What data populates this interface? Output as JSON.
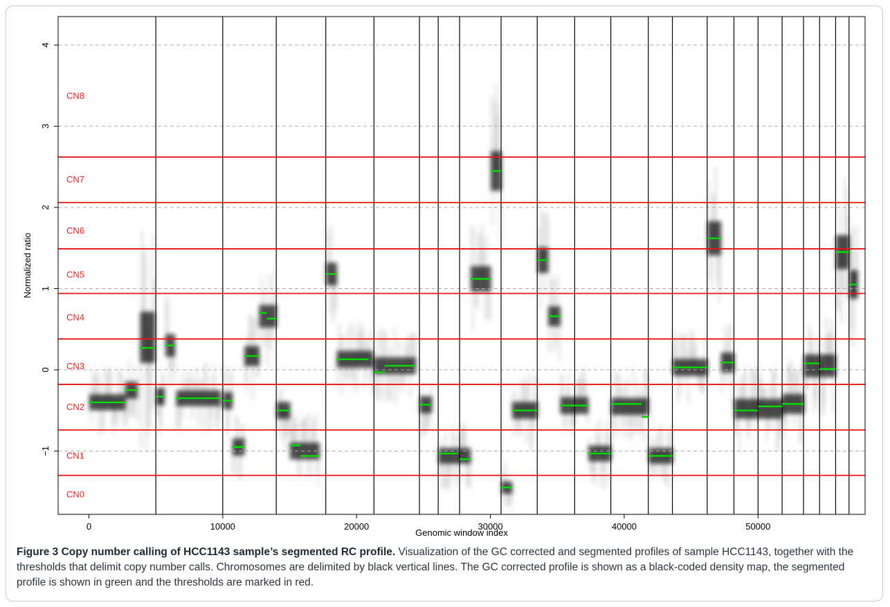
{
  "chart_data": {
    "type": "scatter",
    "title": "",
    "xlabel": "Genomic window index",
    "ylabel": "Normalized ratio",
    "xlim": [
      -2300,
      58000
    ],
    "ylim": [
      -1.78,
      4.35
    ],
    "x_ticks": [
      0,
      10000,
      20000,
      30000,
      40000,
      50000
    ],
    "x_tick_labels": [
      "0",
      "10000",
      "20000",
      "30000",
      "40000",
      "50000"
    ],
    "y_ticks": [
      -1,
      0,
      1,
      2,
      3,
      4
    ],
    "y_tick_labels": [
      "−1",
      "0",
      "1",
      "2",
      "3",
      "4"
    ],
    "dashed_gridlines_y": [
      -1,
      0,
      1,
      2,
      3,
      4
    ],
    "chromosome_boundaries": [
      5000,
      10000,
      14000,
      17700,
      21300,
      24700,
      26100,
      27700,
      30800,
      33500,
      36300,
      39000,
      41800,
      43600,
      46200,
      48200,
      50000,
      51800,
      53400,
      54600,
      55800,
      56800
    ],
    "thresholds": [
      {
        "label": "CN0",
        "label_y": -1.53,
        "upper": -1.3
      },
      {
        "label": "CN1",
        "label_y": -1.05,
        "upper": -0.74
      },
      {
        "label": "CN2",
        "label_y": -0.45,
        "upper": -0.18
      },
      {
        "label": "CN3",
        "label_y": 0.05,
        "upper": 0.38
      },
      {
        "label": "CN4",
        "label_y": 0.65,
        "upper": 0.94
      },
      {
        "label": "CN5",
        "label_y": 1.18,
        "upper": 1.49
      },
      {
        "label": "CN6",
        "label_y": 1.72,
        "upper": 2.06
      },
      {
        "label": "CN7",
        "label_y": 2.35,
        "upper": 2.62
      },
      {
        "label": "CN8",
        "label_y": 3.38,
        "upper": null
      }
    ],
    "segments": [
      {
        "x0": 0,
        "x1": 2700,
        "y": -0.4
      },
      {
        "x0": 2700,
        "x1": 3600,
        "y": -0.25
      },
      {
        "x0": 3800,
        "x1": 4900,
        "y": 0.27
      },
      {
        "x0": 5000,
        "x1": 5600,
        "y": -0.33
      },
      {
        "x0": 5700,
        "x1": 6400,
        "y": 0.3
      },
      {
        "x0": 6500,
        "x1": 7600,
        "y": -0.35
      },
      {
        "x0": 7600,
        "x1": 9800,
        "y": -0.35
      },
      {
        "x0": 10000,
        "x1": 10700,
        "y": -0.38
      },
      {
        "x0": 10700,
        "x1": 11600,
        "y": -0.95
      },
      {
        "x0": 11600,
        "x1": 12700,
        "y": 0.17
      },
      {
        "x0": 12700,
        "x1": 13300,
        "y": 0.7
      },
      {
        "x0": 13300,
        "x1": 14000,
        "y": 0.63
      },
      {
        "x0": 14000,
        "x1": 15000,
        "y": -0.5
      },
      {
        "x0": 15000,
        "x1": 15800,
        "y": -0.93
      },
      {
        "x0": 15800,
        "x1": 17200,
        "y": -1.06
      },
      {
        "x0": 17700,
        "x1": 18500,
        "y": 1.18
      },
      {
        "x0": 18500,
        "x1": 20900,
        "y": 0.13
      },
      {
        "x0": 21300,
        "x1": 22100,
        "y": -0.03
      },
      {
        "x0": 22100,
        "x1": 24400,
        "y": 0.05
      },
      {
        "x0": 24700,
        "x1": 25600,
        "y": -0.43
      },
      {
        "x0": 26100,
        "x1": 27600,
        "y": -1.03
      },
      {
        "x0": 27700,
        "x1": 28500,
        "y": -1.1
      },
      {
        "x0": 28500,
        "x1": 30000,
        "y": 1.12
      },
      {
        "x0": 30000,
        "x1": 30800,
        "y": 2.45
      },
      {
        "x0": 30800,
        "x1": 31600,
        "y": -1.45
      },
      {
        "x0": 31600,
        "x1": 33500,
        "y": -0.5
      },
      {
        "x0": 33500,
        "x1": 34300,
        "y": 1.35
      },
      {
        "x0": 34300,
        "x1": 35200,
        "y": 0.66
      },
      {
        "x0": 35200,
        "x1": 36300,
        "y": -0.44
      },
      {
        "x0": 36300,
        "x1": 37300,
        "y": -0.44
      },
      {
        "x0": 37300,
        "x1": 39000,
        "y": -1.03
      },
      {
        "x0": 39000,
        "x1": 41300,
        "y": -0.42
      },
      {
        "x0": 41300,
        "x1": 41800,
        "y": -0.58
      },
      {
        "x0": 41800,
        "x1": 43600,
        "y": -1.06
      },
      {
        "x0": 43600,
        "x1": 46200,
        "y": 0.03
      },
      {
        "x0": 46200,
        "x1": 47200,
        "y": 1.62
      },
      {
        "x0": 47200,
        "x1": 48200,
        "y": 0.09
      },
      {
        "x0": 48200,
        "x1": 50000,
        "y": -0.5
      },
      {
        "x0": 50000,
        "x1": 51800,
        "y": -0.45
      },
      {
        "x0": 51800,
        "x1": 53400,
        "y": -0.42
      },
      {
        "x0": 53400,
        "x1": 54600,
        "y": 0.08
      },
      {
        "x0": 54600,
        "x1": 55800,
        "y": 0.01
      },
      {
        "x0": 55800,
        "x1": 56800,
        "y": 1.45
      },
      {
        "x0": 56800,
        "x1": 57400,
        "y": 1.05
      }
    ],
    "density_profile": [
      {
        "x0": 0,
        "x1": 2700,
        "center": -0.4,
        "spread": 0.28
      },
      {
        "x0": 2700,
        "x1": 3600,
        "center": -0.25,
        "spread": 0.3
      },
      {
        "x0": 3800,
        "x1": 4900,
        "center": 0.4,
        "spread": 0.9
      },
      {
        "x0": 5000,
        "x1": 5600,
        "center": -0.33,
        "spread": 0.3
      },
      {
        "x0": 5700,
        "x1": 6400,
        "center": 0.3,
        "spread": 0.4
      },
      {
        "x0": 6500,
        "x1": 9800,
        "center": -0.35,
        "spread": 0.28
      },
      {
        "x0": 10000,
        "x1": 10700,
        "center": -0.38,
        "spread": 0.3
      },
      {
        "x0": 10700,
        "x1": 11600,
        "center": -0.95,
        "spread": 0.3
      },
      {
        "x0": 11600,
        "x1": 12700,
        "center": 0.17,
        "spread": 0.35
      },
      {
        "x0": 12700,
        "x1": 14000,
        "center": 0.66,
        "spread": 0.4
      },
      {
        "x0": 14000,
        "x1": 15000,
        "center": -0.5,
        "spread": 0.3
      },
      {
        "x0": 15000,
        "x1": 17200,
        "center": -1.0,
        "spread": 0.3
      },
      {
        "x0": 17700,
        "x1": 18500,
        "center": 1.18,
        "spread": 0.4
      },
      {
        "x0": 18500,
        "x1": 21200,
        "center": 0.13,
        "spread": 0.3
      },
      {
        "x0": 21300,
        "x1": 24400,
        "center": 0.05,
        "spread": 0.3
      },
      {
        "x0": 24700,
        "x1": 25600,
        "center": -0.43,
        "spread": 0.3
      },
      {
        "x0": 26100,
        "x1": 28500,
        "center": -1.06,
        "spread": 0.28
      },
      {
        "x0": 28500,
        "x1": 30000,
        "center": 1.12,
        "spread": 0.45
      },
      {
        "x0": 30000,
        "x1": 30800,
        "center": 2.45,
        "spread": 0.7
      },
      {
        "x0": 30800,
        "x1": 31600,
        "center": -1.45,
        "spread": 0.22
      },
      {
        "x0": 31600,
        "x1": 33500,
        "center": -0.5,
        "spread": 0.3
      },
      {
        "x0": 33500,
        "x1": 34300,
        "center": 1.35,
        "spread": 0.45
      },
      {
        "x0": 34300,
        "x1": 35200,
        "center": 0.66,
        "spread": 0.35
      },
      {
        "x0": 35200,
        "x1": 37300,
        "center": -0.44,
        "spread": 0.3
      },
      {
        "x0": 37300,
        "x1": 39000,
        "center": -1.03,
        "spread": 0.28
      },
      {
        "x0": 39000,
        "x1": 41800,
        "center": -0.45,
        "spread": 0.3
      },
      {
        "x0": 41800,
        "x1": 43600,
        "center": -1.06,
        "spread": 0.28
      },
      {
        "x0": 43600,
        "x1": 46200,
        "center": 0.03,
        "spread": 0.3
      },
      {
        "x0": 46200,
        "x1": 47200,
        "center": 1.62,
        "spread": 0.6
      },
      {
        "x0": 47200,
        "x1": 48200,
        "center": 0.09,
        "spread": 0.35
      },
      {
        "x0": 48200,
        "x1": 51800,
        "center": -0.48,
        "spread": 0.35
      },
      {
        "x0": 51800,
        "x1": 53400,
        "center": -0.42,
        "spread": 0.35
      },
      {
        "x0": 53400,
        "x1": 55800,
        "center": 0.05,
        "spread": 0.4
      },
      {
        "x0": 55800,
        "x1": 56800,
        "center": 1.45,
        "spread": 0.6
      },
      {
        "x0": 56800,
        "x1": 57400,
        "center": 1.05,
        "spread": 0.5
      }
    ],
    "colors": {
      "density": "#000000",
      "segments": "#00dd00",
      "thresholds": "#ee1111",
      "boundaries": "#000000",
      "gridlines": "#aaaaaa"
    }
  },
  "caption": {
    "title": "Figure 3 Copy number calling of HCC1143 sample’s segmented RC profile.",
    "body": " Visualization of the GC corrected and segmented profiles of sample HCC1143, together with the thresholds that delimit copy number calls. Chromosomes are delimited by black vertical lines. The GC corrected profile is shown as a black-coded density map, the segmented profile is shown in green and the thresholds are marked in red."
  }
}
